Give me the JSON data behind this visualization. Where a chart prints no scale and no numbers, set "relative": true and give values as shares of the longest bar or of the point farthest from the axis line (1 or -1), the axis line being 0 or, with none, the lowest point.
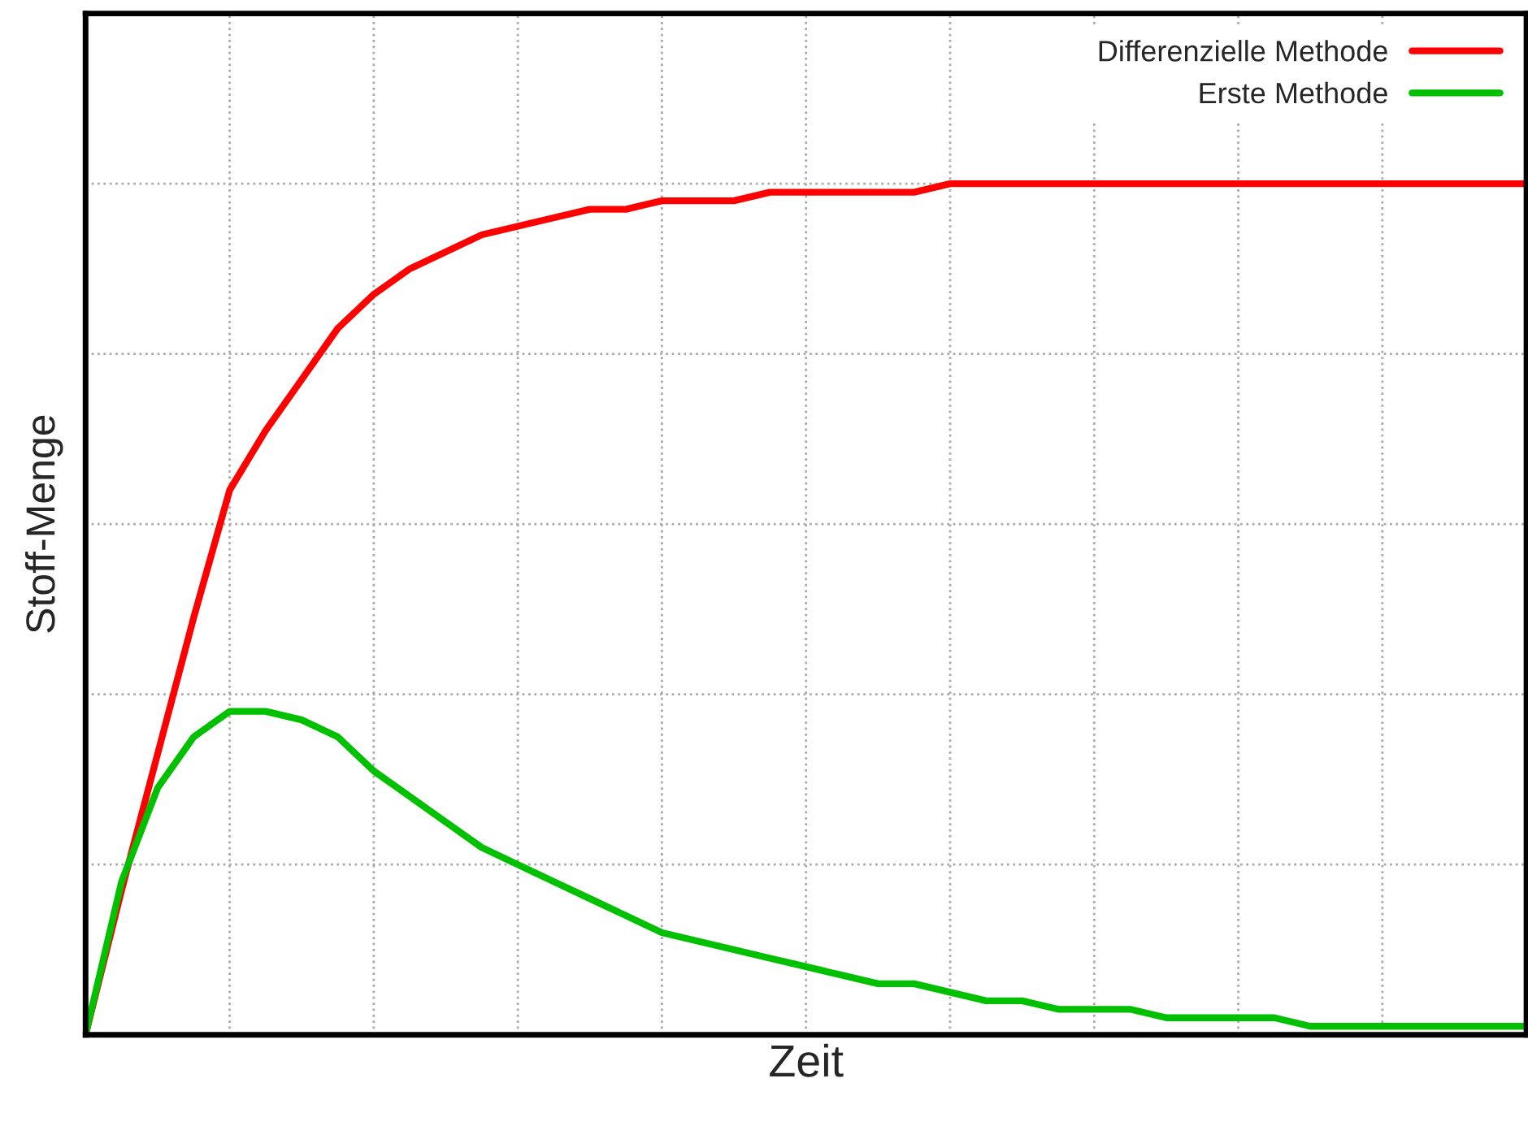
{
  "chart_data": {
    "type": "line",
    "xlabel": "Zeit",
    "ylabel": "Stoff-Menge",
    "relative": true,
    "categories": [
      null,
      null,
      null,
      null,
      null,
      null,
      null,
      null,
      null,
      null,
      null,
      null,
      null,
      null,
      null,
      null,
      null,
      null,
      null,
      null,
      null,
      null,
      null,
      null,
      null,
      null,
      null,
      null,
      null,
      null,
      null,
      null,
      null,
      null,
      null,
      null,
      null,
      null,
      null,
      null,
      null
    ],
    "tick_labels": false,
    "grid": true,
    "legend": "top right",
    "marker": "none",
    "line_style": "solid",
    "series": [
      {
        "name": "Differenzielle Methode",
        "color": "#ff0000",
        "values": [
          0,
          0.17,
          0.33,
          0.49,
          0.64,
          0.71,
          0.77,
          0.83,
          0.87,
          0.9,
          0.92,
          0.94,
          0.95,
          0.96,
          0.97,
          0.97,
          0.98,
          0.98,
          0.98,
          0.99,
          0.99,
          0.99,
          0.99,
          0.99,
          1,
          1,
          1,
          1,
          1,
          1,
          1,
          1,
          1,
          1,
          1,
          1,
          1,
          1,
          1,
          1,
          1
        ]
      },
      {
        "name": "Erste Methode",
        "color": "#00c000",
        "values": [
          0,
          0.18,
          0.29,
          0.35,
          0.38,
          0.38,
          0.37,
          0.35,
          0.31,
          0.28,
          0.25,
          0.22,
          0.2,
          0.18,
          0.16,
          0.14,
          0.12,
          0.11,
          0.1,
          0.09,
          0.08,
          0.07,
          0.06,
          0.06,
          0.05,
          0.04,
          0.04,
          0.03,
          0.03,
          0.03,
          0.02,
          0.02,
          0.02,
          0.02,
          0.01,
          0.01,
          0.01,
          0.01,
          0.01,
          0.01,
          0.01
        ]
      }
    ]
  }
}
